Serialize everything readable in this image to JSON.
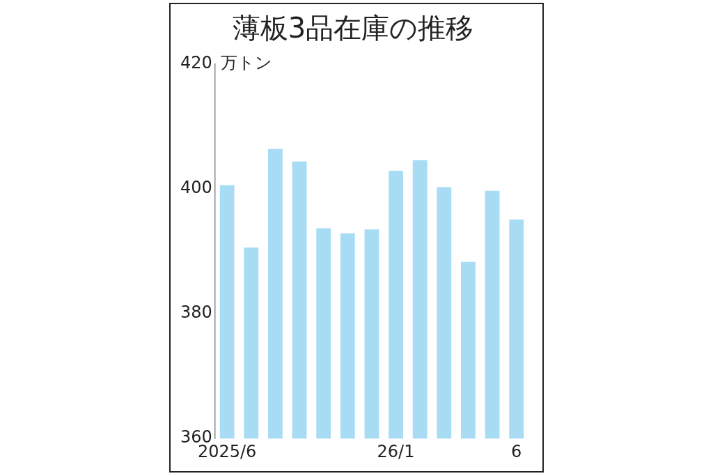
{
  "chart_data": {
    "type": "bar",
    "title": "薄板3品在庫の推移",
    "ylabel": "万トン",
    "categories": [
      "2025/6",
      null,
      null,
      null,
      null,
      null,
      null,
      "26/1",
      null,
      null,
      null,
      null,
      "6"
    ],
    "values": [
      400.6,
      390.6,
      406.4,
      404.4,
      393.7,
      392.9,
      393.5,
      402.9,
      404.6,
      400.3,
      388.3,
      399.7,
      395.1
    ],
    "color": "#a8dcf5",
    "ylim": [
      360,
      420
    ],
    "yticks": [
      360,
      380,
      400,
      420
    ],
    "grid": false,
    "legend": false
  }
}
